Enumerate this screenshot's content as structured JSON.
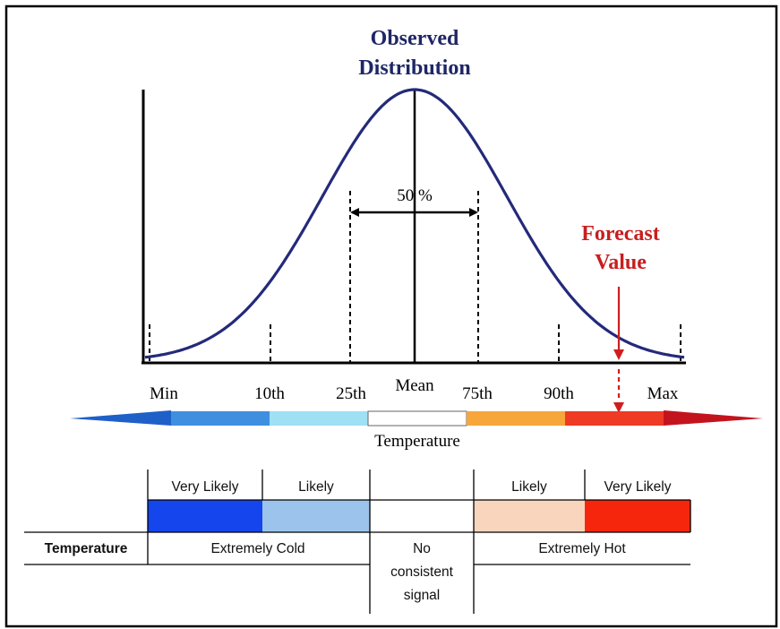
{
  "titles": {
    "observed_line1": "Observed",
    "observed_line2": "Distribution",
    "forecast_line1": "Forecast",
    "forecast_line2": "Value"
  },
  "center_label": "50 %",
  "x_axis": {
    "ticks": [
      "Min",
      "10th",
      "25th",
      "Mean",
      "75th",
      "90th",
      "Max"
    ],
    "title": "Temperature"
  },
  "scale_colors": [
    "#1f5fc8",
    "#3f8fe0",
    "#9fe0f4",
    "#ffffff",
    "#f6a63a",
    "#ef3a24",
    "#c3141e"
  ],
  "table": {
    "row_label": "Temperature",
    "top_labels": [
      "Very Likely",
      "Likely",
      "",
      "Likely",
      "Very Likely"
    ],
    "swatch_colors": [
      "#1545ec",
      "#9cc3ec",
      "#ffffff",
      "#f9d5bd",
      "#f6260d"
    ],
    "cold_label": "Extremely Cold",
    "neutral_line1": "No",
    "neutral_line2": "consistent",
    "neutral_line3": "signal",
    "hot_label": "Extremely Hot"
  },
  "colors": {
    "curve": "#232a7a",
    "observed_title": "#1f2666",
    "forecast": "#c81e1e"
  }
}
